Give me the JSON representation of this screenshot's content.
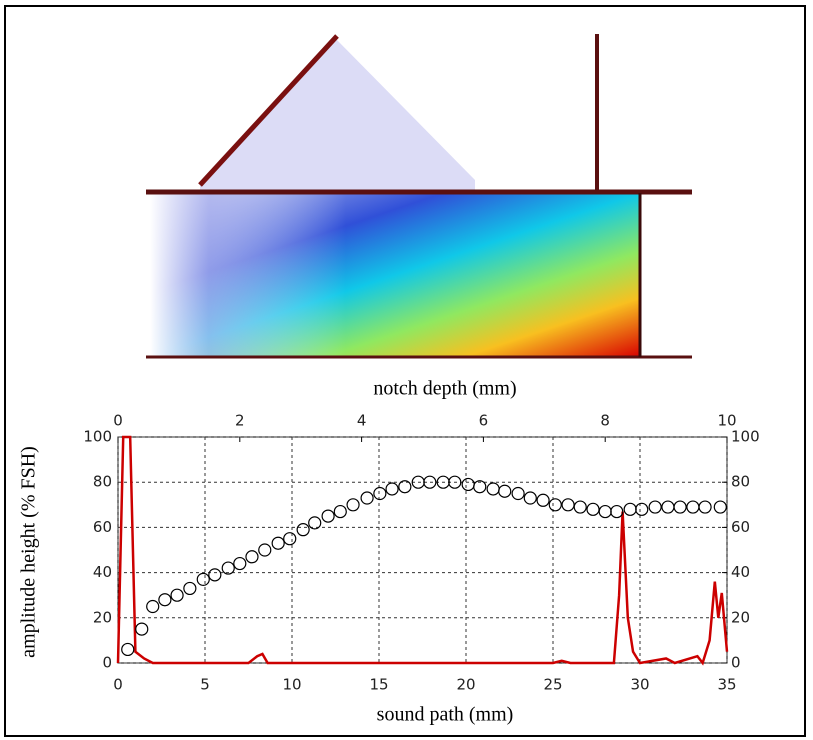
{
  "chart_data": {
    "type": "combo",
    "xlabel": "sound path (mm)",
    "x2label": "notch depth (mm)",
    "ylabel": "amplitude height (% FSH)",
    "xlim": [
      0,
      35
    ],
    "xticks": [
      0,
      5,
      10,
      15,
      20,
      25,
      30,
      35
    ],
    "x2lim": [
      0,
      10
    ],
    "x2ticks": [
      0,
      2,
      4,
      6,
      8,
      10
    ],
    "ylim": [
      0,
      100
    ],
    "yticks": [
      0,
      20,
      40,
      60,
      80,
      100
    ],
    "y2lim": [
      0,
      100
    ],
    "y2ticks": [
      0,
      20,
      40,
      60,
      80,
      100
    ],
    "grid": true,
    "series": [
      {
        "type": "line",
        "xaxis": "x",
        "color": "#cc0000",
        "x": [
          0,
          0.3,
          0.7,
          1.0,
          1.5,
          2,
          7.5,
          8,
          8.3,
          8.6,
          25,
          25.5,
          26,
          28.5,
          28.8,
          29,
          29.3,
          29.6,
          30,
          31.5,
          32,
          33.3,
          33.6,
          34,
          34.3,
          34.5,
          34.7,
          35
        ],
        "values": [
          0,
          100,
          100,
          5,
          2,
          0,
          0,
          3,
          4,
          0,
          0,
          1,
          0,
          0,
          30,
          67,
          20,
          5,
          0,
          2,
          0,
          3,
          0,
          10,
          36,
          20,
          31,
          5
        ]
      },
      {
        "type": "scatter",
        "xaxis": "x2",
        "color": "#000000",
        "x": [
          0.16,
          0.39,
          0.57,
          0.77,
          0.97,
          1.18,
          1.4,
          1.59,
          1.81,
          2.0,
          2.2,
          2.41,
          2.63,
          2.82,
          3.04,
          3.23,
          3.45,
          3.65,
          3.86,
          4.09,
          4.3,
          4.5,
          4.71,
          4.93,
          5.12,
          5.34,
          5.53,
          5.75,
          5.94,
          6.16,
          6.35,
          6.57,
          6.77,
          6.98,
          7.18,
          7.39,
          7.59,
          7.8,
          8.0,
          8.19,
          8.41,
          8.6,
          8.82,
          9.03,
          9.23,
          9.44,
          9.64,
          9.89
        ],
        "values": [
          6,
          15,
          25,
          28,
          30,
          33,
          37,
          39,
          42,
          44,
          47,
          50,
          53,
          55,
          59,
          62,
          65,
          67,
          70,
          73,
          75,
          77,
          78,
          80,
          80,
          80,
          80,
          79,
          78,
          77,
          76,
          75,
          73,
          72,
          70,
          70,
          69,
          68,
          67,
          67,
          68,
          68,
          69,
          69,
          69,
          69,
          69,
          69
        ]
      }
    ]
  }
}
